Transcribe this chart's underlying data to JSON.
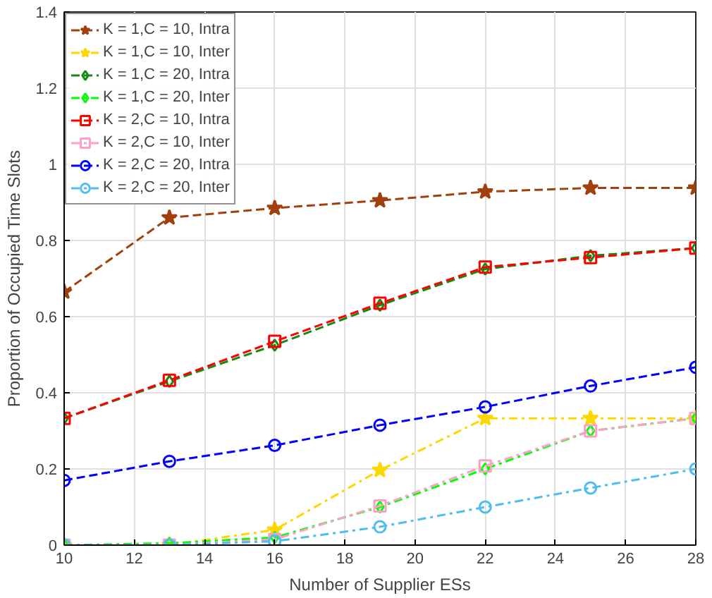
{
  "chart_data": {
    "type": "line",
    "xlabel": "Number of Supplier ESs",
    "ylabel": "Proportion of Occupied Time Slots",
    "x": [
      10,
      13,
      16,
      19,
      22,
      25,
      28
    ],
    "xlim": [
      10,
      28
    ],
    "xticks": [
      10,
      12,
      14,
      16,
      18,
      20,
      22,
      24,
      26,
      28
    ],
    "ylim": [
      0,
      1.4
    ],
    "yticks": [
      0,
      0.2,
      0.4,
      0.6,
      0.8,
      1,
      1.2,
      1.4
    ],
    "grid": true,
    "legend": "top left",
    "series": [
      {
        "name": "K = 1,C = 10, Intra",
        "color": "#a0410d",
        "marker": "star",
        "line_style": "dashed",
        "values": [
          0.665,
          0.86,
          0.885,
          0.905,
          0.928,
          0.938,
          0.938
        ]
      },
      {
        "name": "K = 1,C = 10, Inter",
        "color": "#ffd700",
        "marker": "star",
        "line_style": "dashdot",
        "values": [
          0,
          0,
          0.04,
          0.197,
          0.333,
          0.333,
          0.333
        ]
      },
      {
        "name": "K = 1,C = 20, Intra",
        "color": "#138a13",
        "marker": "diamond",
        "line_style": "dashed",
        "values": [
          0.333,
          0.43,
          0.525,
          0.63,
          0.725,
          0.76,
          0.78
        ]
      },
      {
        "name": "K = 1,C = 20, Inter",
        "color": "#00ff00",
        "marker": "diamond",
        "line_style": "dashdot",
        "values": [
          0,
          0.005,
          0.02,
          0.1,
          0.2,
          0.3,
          0.333
        ]
      },
      {
        "name": "K = 2,C = 10, Intra",
        "color": "#ff0000",
        "marker": "square",
        "line_style": "dashed",
        "values": [
          0.333,
          0.433,
          0.535,
          0.635,
          0.73,
          0.755,
          0.78
        ]
      },
      {
        "name": "K = 2,C = 10, Inter",
        "color": "#ff9ec8",
        "marker": "square",
        "line_style": "dashdot",
        "values": [
          0,
          0,
          0.015,
          0.103,
          0.208,
          0.3,
          0.333
        ]
      },
      {
        "name": "K = 2,C = 20, Intra",
        "color": "#0000ff",
        "marker": "circle",
        "line_style": "dashed",
        "values": [
          0.17,
          0.22,
          0.262,
          0.315,
          0.363,
          0.418,
          0.467
        ]
      },
      {
        "name": "K = 2,C = 20, Inter",
        "color": "#4dbeee",
        "marker": "circle",
        "line_style": "dashdot",
        "values": [
          0,
          0,
          0.01,
          0.048,
          0.1,
          0.15,
          0.2
        ]
      }
    ]
  }
}
